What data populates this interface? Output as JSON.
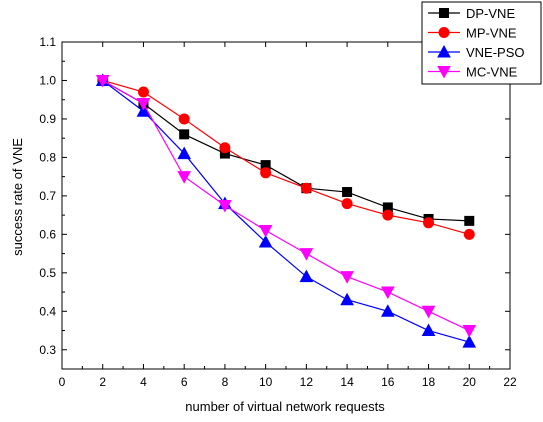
{
  "chart_data": {
    "type": "line",
    "xlabel": "number of virtual network requests",
    "ylabel": "success rate of VNE",
    "xlim": [
      0,
      22
    ],
    "ylim": [
      0.25,
      1.1
    ],
    "x_ticks": [
      0,
      2,
      4,
      6,
      8,
      10,
      12,
      14,
      16,
      18,
      20,
      22
    ],
    "y_ticks": [
      0.3,
      0.4,
      0.5,
      0.6,
      0.7,
      0.8,
      0.9,
      1.0,
      1.1
    ],
    "x_tick_labels": [
      "0",
      "2",
      "4",
      "6",
      "8",
      "10",
      "12",
      "14",
      "16",
      "18",
      "20",
      "22"
    ],
    "y_tick_labels": [
      "0.3",
      "0.4",
      "0.5",
      "0.6",
      "0.7",
      "0.8",
      "0.9",
      "1.0",
      "1.1"
    ],
    "grid": false,
    "legend_position": "top-right",
    "x": [
      2,
      4,
      6,
      8,
      10,
      12,
      14,
      16,
      18,
      20
    ],
    "series": [
      {
        "name": "DP-VNE",
        "color": "#000000",
        "marker": "square",
        "values": [
          1.0,
          0.94,
          0.86,
          0.81,
          0.78,
          0.72,
          0.71,
          0.67,
          0.64,
          0.635
        ]
      },
      {
        "name": "MP-VNE",
        "color": "#ff0000",
        "marker": "circle",
        "values": [
          1.0,
          0.97,
          0.9,
          0.825,
          0.76,
          0.72,
          0.68,
          0.65,
          0.63,
          0.6
        ]
      },
      {
        "name": "VNE-PSO",
        "color": "#0000ff",
        "marker": "triangle-up",
        "values": [
          1.0,
          0.92,
          0.81,
          0.68,
          0.58,
          0.49,
          0.43,
          0.4,
          0.35,
          0.32
        ]
      },
      {
        "name": "MC-VNE",
        "color": "#ff00ff",
        "marker": "triangle-down",
        "values": [
          1.0,
          0.94,
          0.75,
          0.675,
          0.61,
          0.55,
          0.49,
          0.45,
          0.4,
          0.35
        ]
      }
    ]
  }
}
